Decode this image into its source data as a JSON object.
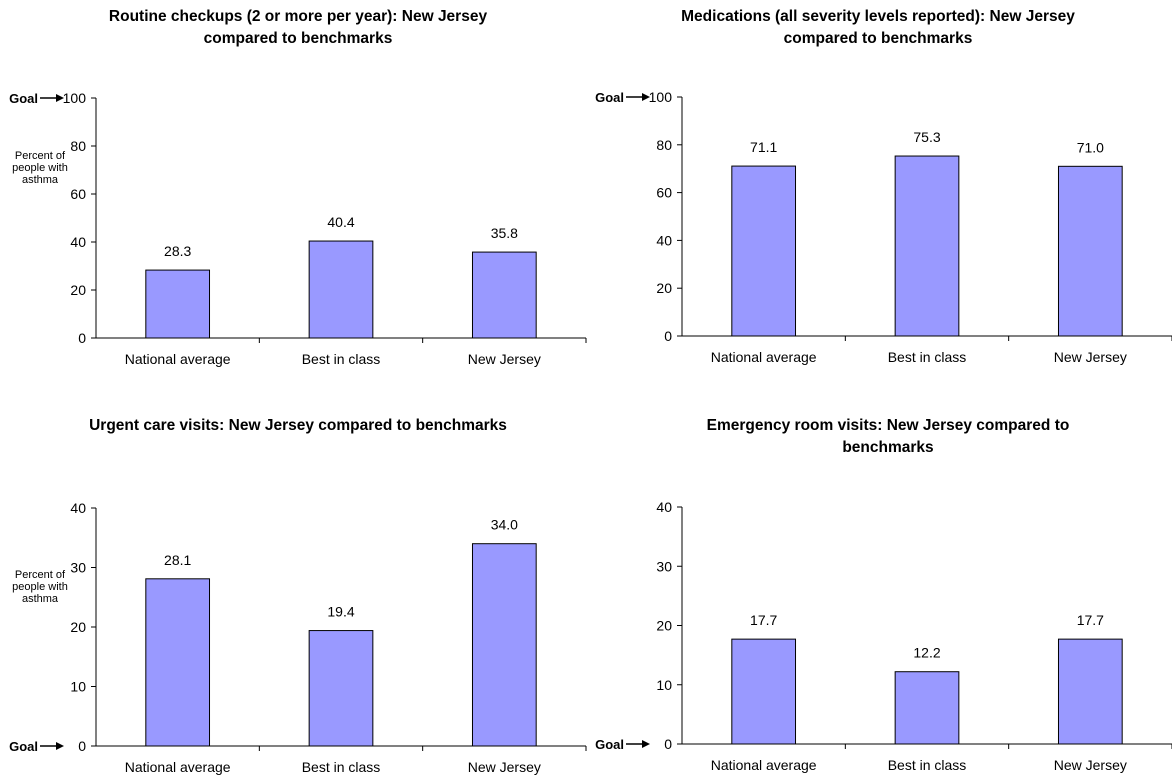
{
  "chart_data": [
    {
      "type": "bar",
      "title": "Routine checkups (2 or more per year): New Jersey compared to benchmarks",
      "categories": [
        "National average",
        "Best in class",
        "New  Jersey"
      ],
      "values": [
        28.3,
        40.4,
        35.8
      ],
      "value_labels": [
        "28.3",
        "40.4",
        "35.8"
      ],
      "ylim": [
        0,
        100
      ],
      "yticks": [
        0,
        20,
        40,
        60,
        80,
        100
      ],
      "ylabel": "Percent of people with asthma",
      "goal_label": "Goal",
      "goal_value": 100,
      "bar_color": "#9999ff"
    },
    {
      "type": "bar",
      "title": "Medications (all severity levels reported): New Jersey compared to benchmarks",
      "categories": [
        "National average",
        "Best in class",
        "New  Jersey"
      ],
      "values": [
        71.1,
        75.3,
        71.0
      ],
      "value_labels": [
        "71.1",
        "75.3",
        "71.0"
      ],
      "ylim": [
        0,
        100
      ],
      "yticks": [
        0,
        20,
        40,
        60,
        80,
        100
      ],
      "ylabel": "",
      "goal_label": "Goal",
      "goal_value": 100,
      "bar_color": "#9999ff"
    },
    {
      "type": "bar",
      "title": "Urgent care visits: New Jersey compared to benchmarks",
      "categories": [
        "National average",
        "Best in class",
        "New Jersey"
      ],
      "values": [
        28.1,
        19.4,
        34.0
      ],
      "value_labels": [
        "28.1",
        "19.4",
        "34.0"
      ],
      "ylim": [
        0,
        40
      ],
      "yticks": [
        0,
        10,
        20,
        30,
        40
      ],
      "ylabel": "Percent of people with asthma",
      "goal_label": "Goal",
      "goal_value": 0,
      "bar_color": "#9999ff"
    },
    {
      "type": "bar",
      "title": "Emergency room visits: New Jersey compared to benchmarks",
      "categories": [
        "National average",
        "Best in class",
        "New  Jersey"
      ],
      "values": [
        17.7,
        12.2,
        17.7
      ],
      "value_labels": [
        "17.7",
        "12.2",
        "17.7"
      ],
      "ylim": [
        0,
        40
      ],
      "yticks": [
        0,
        10,
        20,
        30,
        40
      ],
      "ylabel": "",
      "goal_label": "Goal",
      "goal_value": 0,
      "bar_color": "#9999ff"
    }
  ]
}
